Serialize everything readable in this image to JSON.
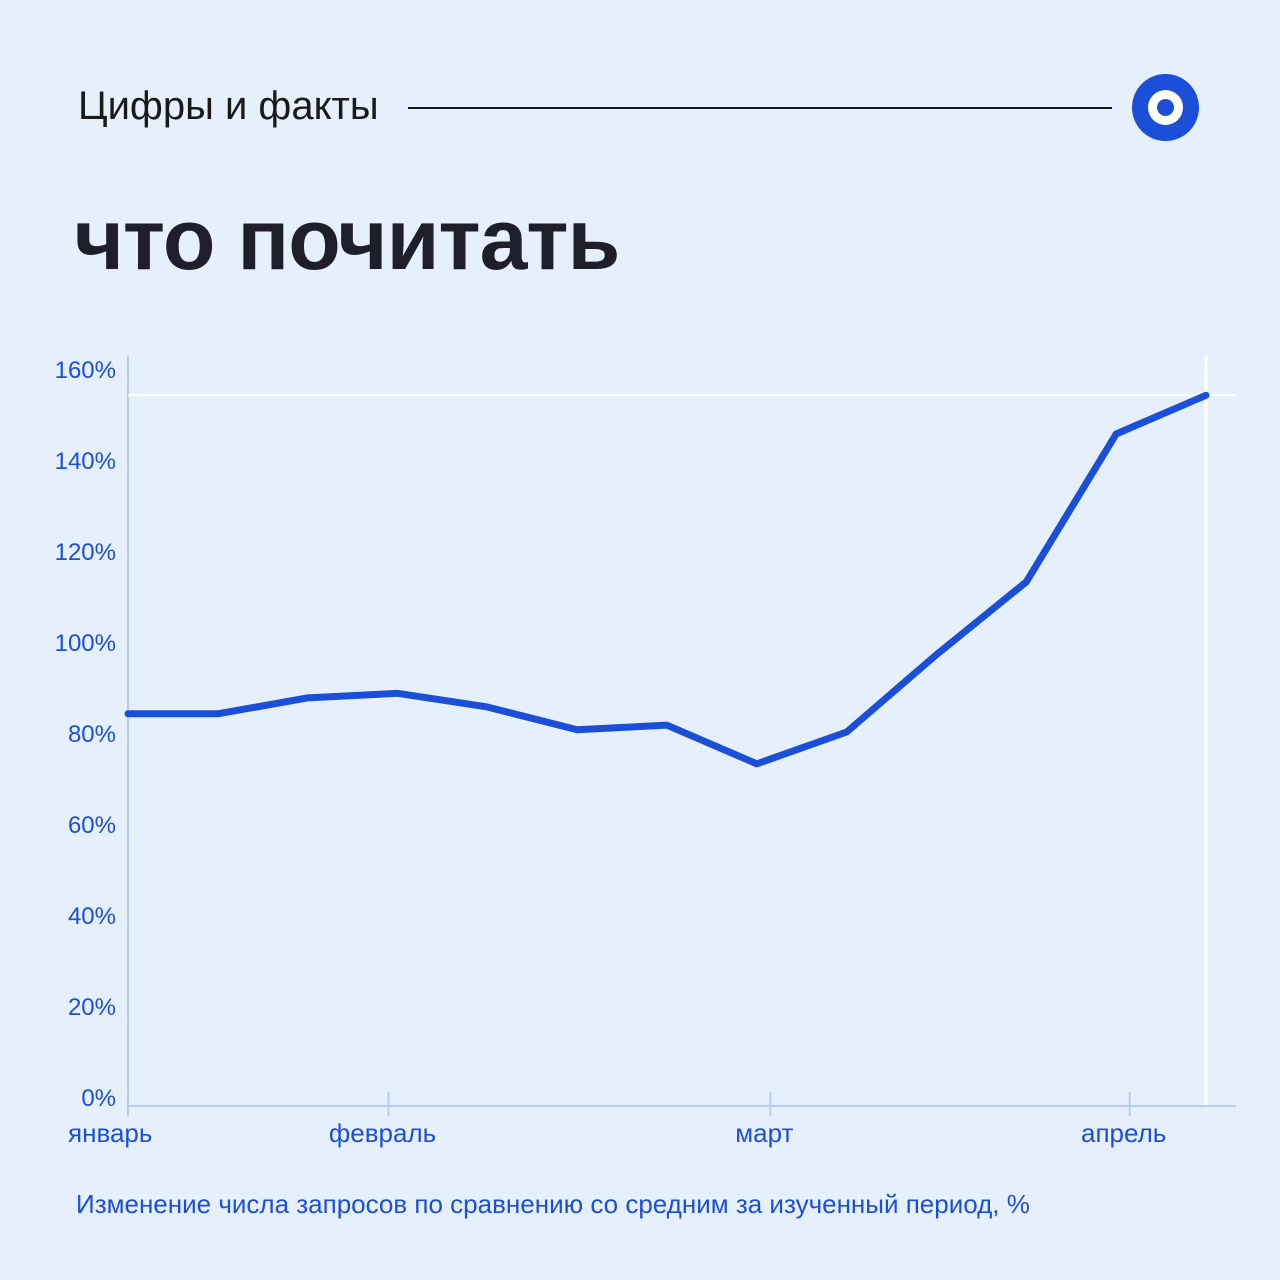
{
  "header": {
    "label": "Цифры и факты",
    "logo_icon": "target-ring-icon"
  },
  "title": "что почитать",
  "caption": "Изменение числа запросов по сравнению со средним за изученный период, %",
  "colors": {
    "background": "#e6f0fc",
    "accent": "#1c4fd8",
    "axis": "#b5cdf4",
    "title": "#1e1f2b"
  },
  "chart_data": {
    "type": "line",
    "title": "",
    "xlabel": "",
    "ylabel": "",
    "ylim": [
      0,
      160
    ],
    "y_ticks": [
      0,
      20,
      40,
      60,
      80,
      100,
      120,
      140,
      160
    ],
    "y_tick_labels": [
      "0%",
      "20%",
      "40%",
      "60%",
      "80%",
      "100%",
      "120%",
      "140%",
      "160%"
    ],
    "x_tick_labels": [
      "январь",
      "февраль",
      "март",
      "апрель"
    ],
    "x_tick_positions": [
      0,
      2.9,
      7.15,
      11.15
    ],
    "reference_line": 154,
    "series": [
      {
        "name": "",
        "x": [
          0,
          1,
          2,
          3,
          4,
          5,
          6,
          7,
          8,
          9,
          10,
          11,
          12
        ],
        "values": [
          84,
          84,
          87.5,
          88.5,
          85.5,
          80.5,
          81.5,
          73,
          80,
          97,
          113,
          145.5,
          154
        ]
      }
    ]
  }
}
